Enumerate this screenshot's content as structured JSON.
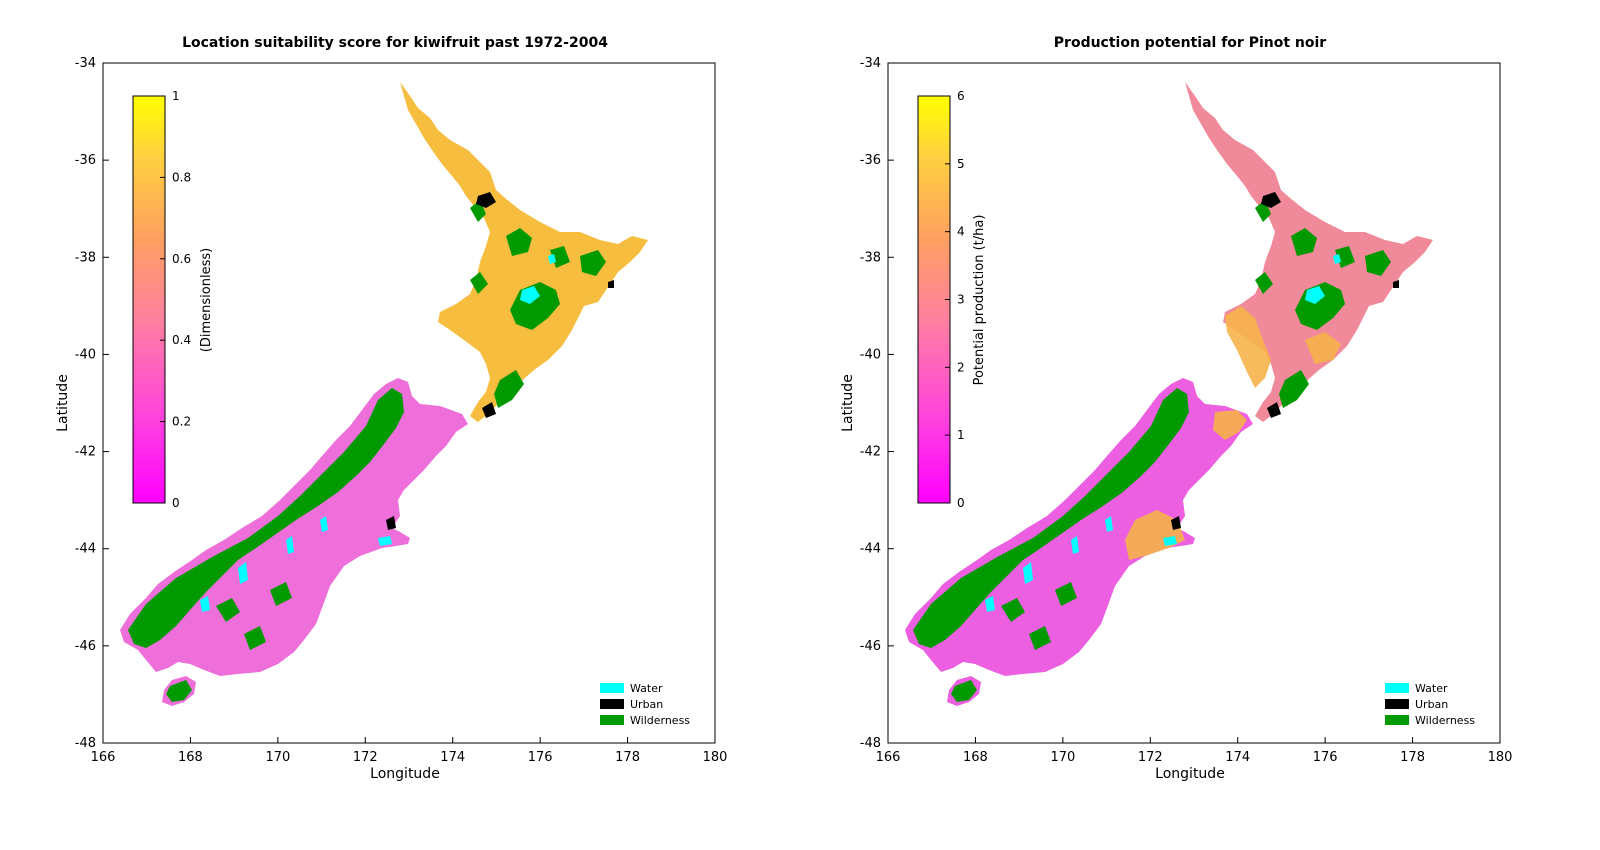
{
  "panels": [
    {
      "id": "kiwifruit",
      "title": "Location suitability score for kiwifruit past 1972-2004",
      "xlabel": "Longitude",
      "ylabel": "Latitude",
      "x_ticks": [
        "166",
        "168",
        "170",
        "172",
        "174",
        "176",
        "178",
        "180"
      ],
      "y_ticks": [
        "-34",
        "-36",
        "-38",
        "-40",
        "-42",
        "-44",
        "-46",
        "-48"
      ],
      "colorbar": {
        "label": "(Dimensionless)",
        "ticks": [
          "0",
          "0.2",
          "0.4",
          "0.6",
          "0.8",
          "1"
        ],
        "range": [
          0,
          1
        ]
      },
      "north_island_tone": "#f7bd3f",
      "south_island_tone": "#ee6fd9",
      "legend": [
        {
          "label": "Water",
          "color": "#00ffff"
        },
        {
          "label": "Urban",
          "color": "#000000"
        },
        {
          "label": "Wilderness",
          "color": "#009900"
        }
      ]
    },
    {
      "id": "pinot",
      "title": "Production potential for Pinot noir",
      "xlabel": "Longitude",
      "ylabel": "Latitude",
      "x_ticks": [
        "166",
        "168",
        "170",
        "172",
        "174",
        "176",
        "178",
        "180"
      ],
      "y_ticks": [
        "-34",
        "-36",
        "-38",
        "-40",
        "-42",
        "-44",
        "-46",
        "-48"
      ],
      "colorbar": {
        "label": "Potential production (t/ha)",
        "ticks": [
          "0",
          "1",
          "2",
          "3",
          "4",
          "5",
          "6"
        ],
        "range": [
          0,
          6
        ]
      },
      "north_island_tone": "#f08a9a",
      "south_island_tone": "#ec5fe0",
      "legend": [
        {
          "label": "Water",
          "color": "#00ffff"
        },
        {
          "label": "Urban",
          "color": "#000000"
        },
        {
          "label": "Wilderness",
          "color": "#009900"
        }
      ]
    }
  ],
  "colormap": [
    "#ff00ff",
    "#ff40df",
    "#ff80bf",
    "#ffbf80",
    "#ffdf40",
    "#ffff00"
  ]
}
